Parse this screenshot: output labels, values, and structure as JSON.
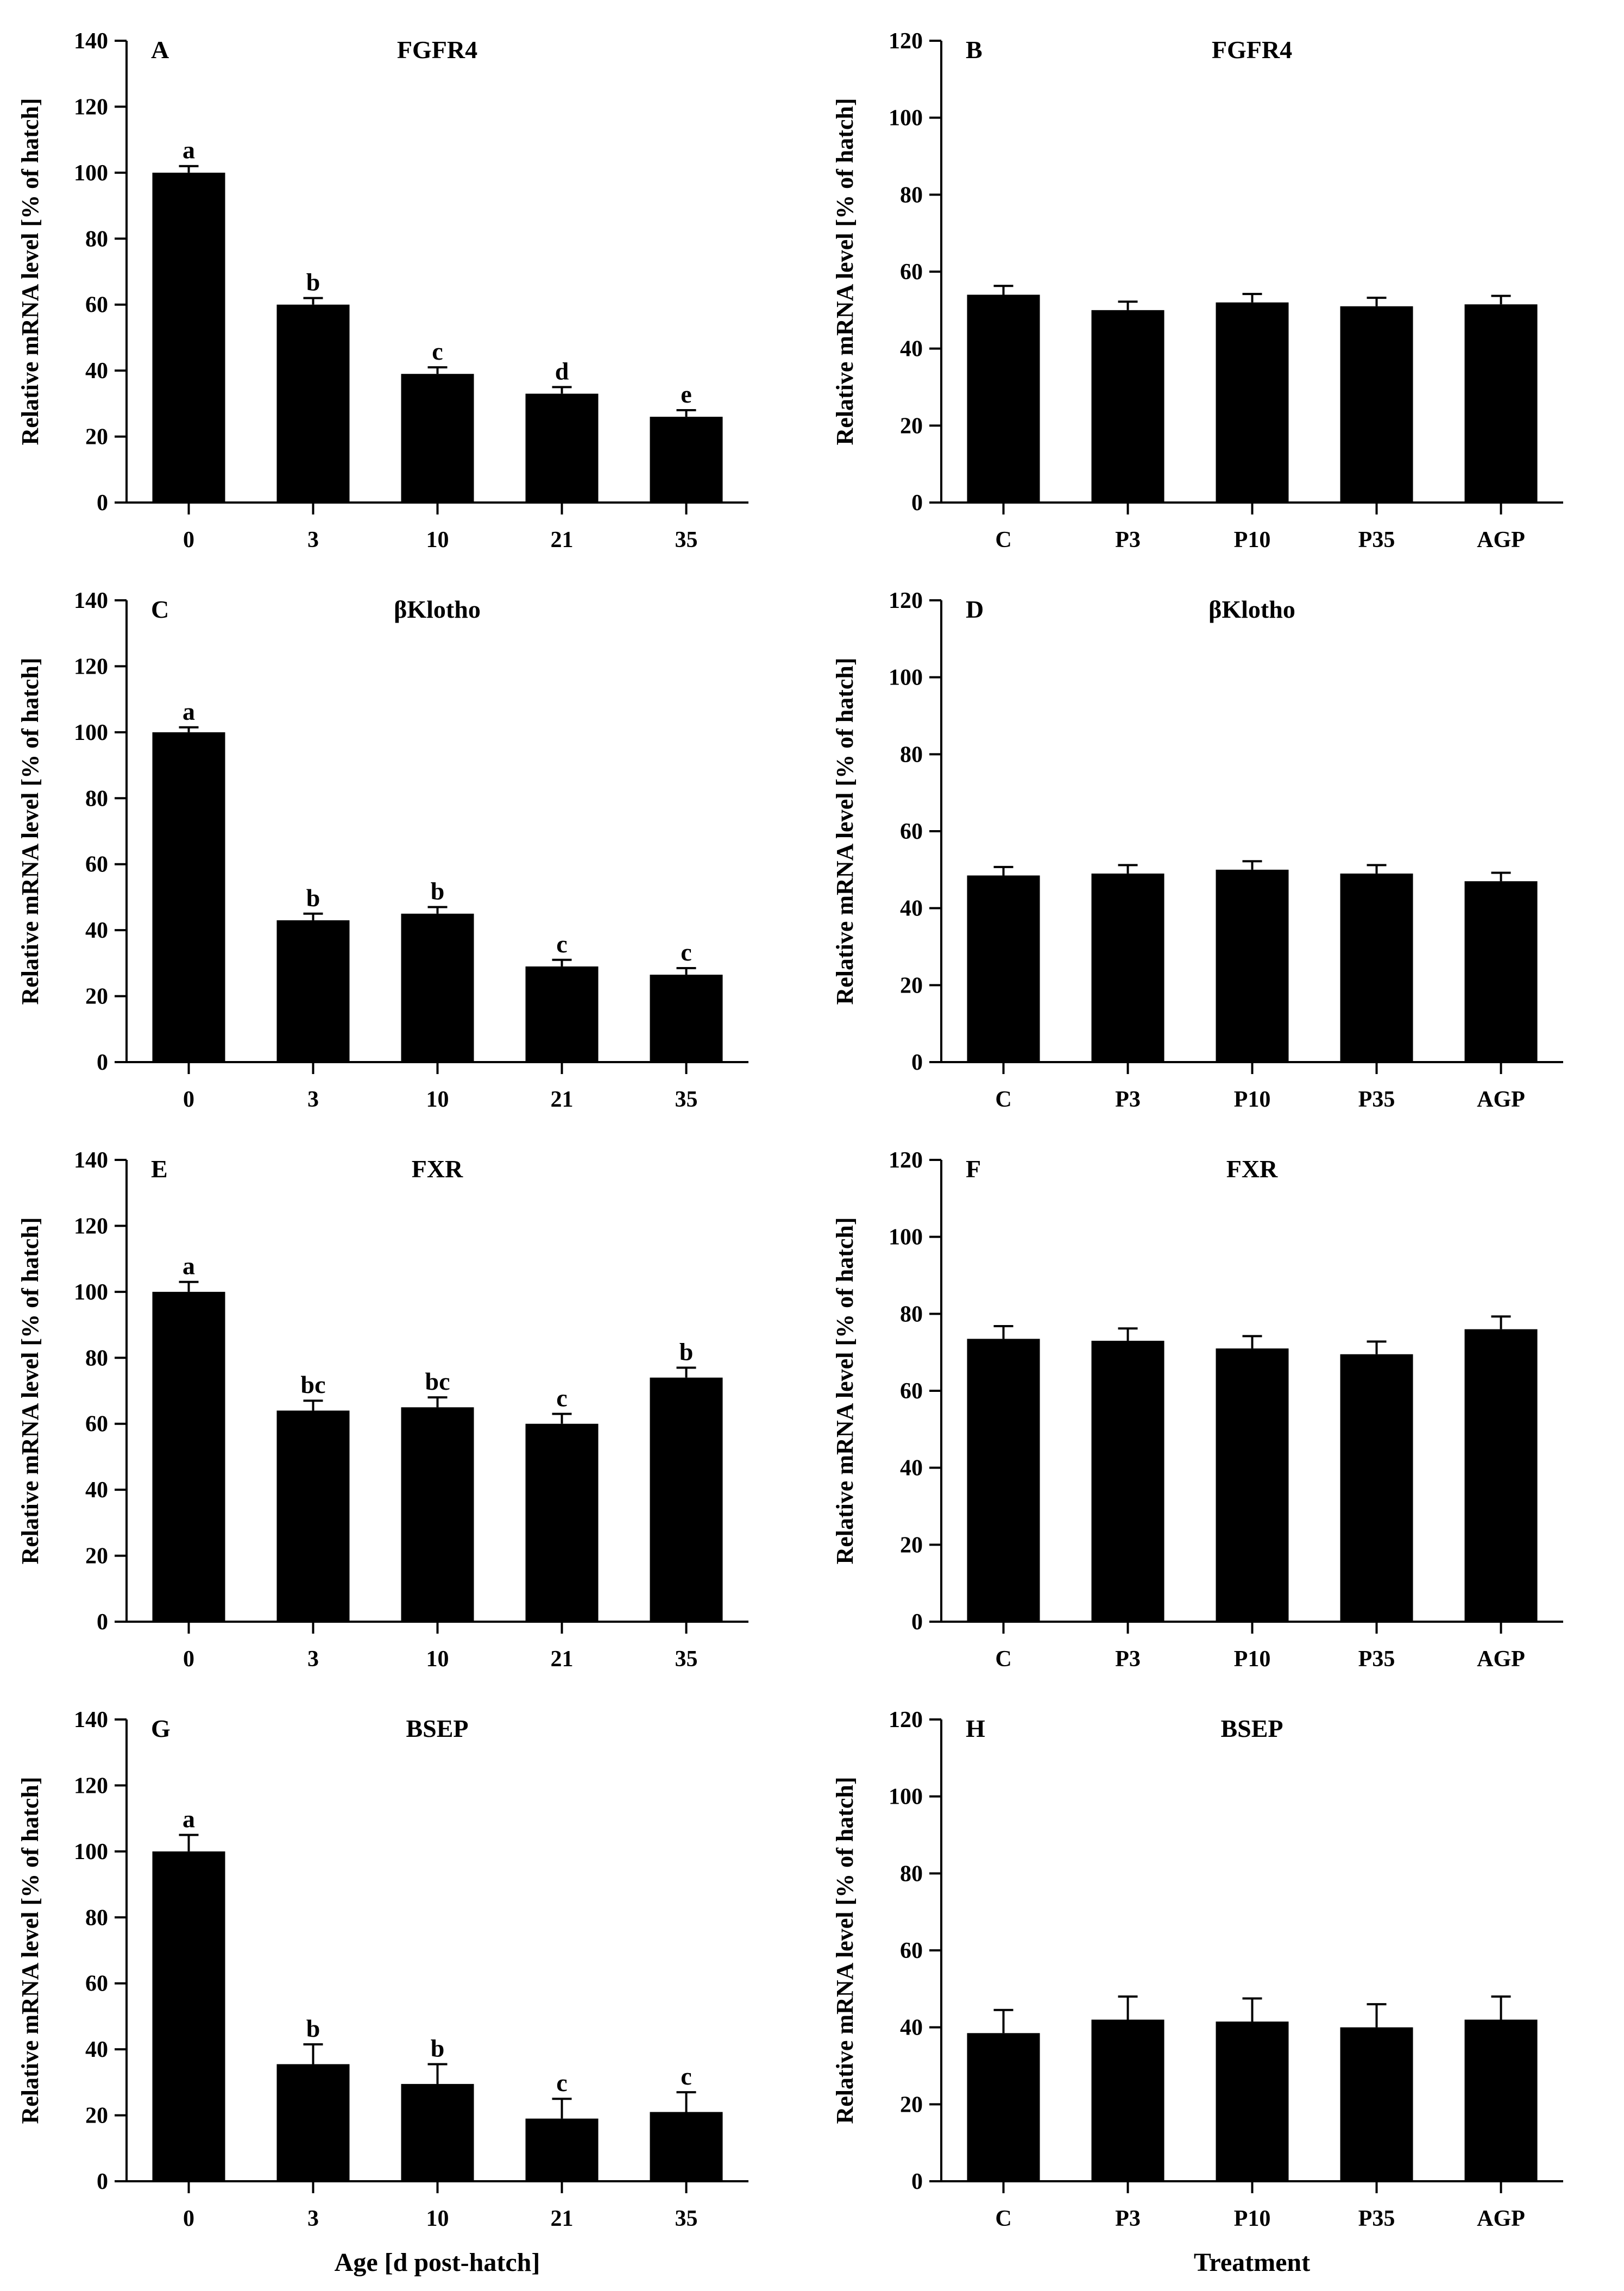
{
  "chart_data": [
    {
      "type": "bar",
      "letter": "A",
      "title": "FGFR4",
      "ylabel": "Relative mRNA level [% of hatch]",
      "xlabel": "",
      "ylim": [
        0,
        140
      ],
      "yticks": [
        0,
        20,
        40,
        60,
        80,
        100,
        120,
        140
      ],
      "categories": [
        "0",
        "3",
        "10",
        "21",
        "35"
      ],
      "values": [
        100,
        60,
        39,
        33,
        26
      ],
      "errors": [
        2,
        2,
        2,
        2,
        2
      ],
      "sig": [
        "a",
        "b",
        "c",
        "d",
        "e"
      ]
    },
    {
      "type": "bar",
      "letter": "B",
      "title": "FGFR4",
      "ylabel": "Relative mRNA level [% of hatch]",
      "xlabel": "",
      "ylim": [
        0,
        120
      ],
      "yticks": [
        0,
        20,
        40,
        60,
        80,
        100,
        120
      ],
      "categories": [
        "C",
        "P3",
        "P10",
        "P35",
        "AGP"
      ],
      "values": [
        54,
        50,
        52,
        51,
        51.5
      ],
      "errors": [
        2.3,
        2.2,
        2.2,
        2.2,
        2.2
      ],
      "sig": [
        "",
        "",
        "",
        "",
        ""
      ]
    },
    {
      "type": "bar",
      "letter": "C",
      "title": "βKlotho",
      "ylabel": "Relative mRNA level [% of hatch]",
      "xlabel": "",
      "ylim": [
        0,
        140
      ],
      "yticks": [
        0,
        20,
        40,
        60,
        80,
        100,
        120,
        140
      ],
      "categories": [
        "0",
        "3",
        "10",
        "21",
        "35"
      ],
      "values": [
        100,
        43,
        45,
        29,
        26.5
      ],
      "errors": [
        1.5,
        2,
        2,
        2,
        2
      ],
      "sig": [
        "a",
        "b",
        "b",
        "c",
        "c"
      ]
    },
    {
      "type": "bar",
      "letter": "D",
      "title": "βKlotho",
      "ylabel": "Relative mRNA level [% of hatch]",
      "xlabel": "",
      "ylim": [
        0,
        120
      ],
      "yticks": [
        0,
        20,
        40,
        60,
        80,
        100,
        120
      ],
      "categories": [
        "C",
        "P3",
        "P10",
        "P35",
        "AGP"
      ],
      "values": [
        48.5,
        49,
        50,
        49,
        47
      ],
      "errors": [
        2.2,
        2.2,
        2.2,
        2.2,
        2.2
      ],
      "sig": [
        "",
        "",
        "",
        "",
        ""
      ]
    },
    {
      "type": "bar",
      "letter": "E",
      "title": "FXR",
      "ylabel": "Relative mRNA level [% of hatch]",
      "xlabel": "",
      "ylim": [
        0,
        140
      ],
      "yticks": [
        0,
        20,
        40,
        60,
        80,
        100,
        120,
        140
      ],
      "categories": [
        "0",
        "3",
        "10",
        "21",
        "35"
      ],
      "values": [
        100,
        64,
        65,
        60,
        74
      ],
      "errors": [
        3,
        3,
        3,
        3,
        3
      ],
      "sig": [
        "a",
        "bc",
        "bc",
        "c",
        "b"
      ]
    },
    {
      "type": "bar",
      "letter": "F",
      "title": "FXR",
      "ylabel": "Relative mRNA level [% of hatch]",
      "xlabel": "",
      "ylim": [
        0,
        120
      ],
      "yticks": [
        0,
        20,
        40,
        60,
        80,
        100,
        120
      ],
      "categories": [
        "C",
        "P3",
        "P10",
        "P35",
        "AGP"
      ],
      "values": [
        73.5,
        73,
        71,
        69.5,
        76
      ],
      "errors": [
        3.3,
        3.2,
        3.2,
        3.3,
        3.3
      ],
      "sig": [
        "",
        "",
        "",
        "",
        ""
      ]
    },
    {
      "type": "bar",
      "letter": "G",
      "title": "BSEP",
      "ylabel": "Relative mRNA level [% of hatch]",
      "xlabel": "Age [d post-hatch]",
      "ylim": [
        0,
        140
      ],
      "yticks": [
        0,
        20,
        40,
        60,
        80,
        100,
        120,
        140
      ],
      "categories": [
        "0",
        "3",
        "10",
        "21",
        "35"
      ],
      "values": [
        100,
        35.5,
        29.5,
        19,
        21
      ],
      "errors": [
        5,
        6,
        6,
        6,
        6
      ],
      "sig": [
        "a",
        "b",
        "b",
        "c",
        "c"
      ]
    },
    {
      "type": "bar",
      "letter": "H",
      "title": "BSEP",
      "ylabel": "Relative mRNA level [% of hatch]",
      "xlabel": "Treatment",
      "ylim": [
        0,
        120
      ],
      "yticks": [
        0,
        20,
        40,
        60,
        80,
        100,
        120
      ],
      "categories": [
        "C",
        "P3",
        "P10",
        "P35",
        "AGP"
      ],
      "values": [
        38.5,
        42,
        41.5,
        40,
        42
      ],
      "errors": [
        6,
        6,
        6,
        6,
        6
      ],
      "sig": [
        "",
        "",
        "",
        "",
        ""
      ]
    }
  ]
}
